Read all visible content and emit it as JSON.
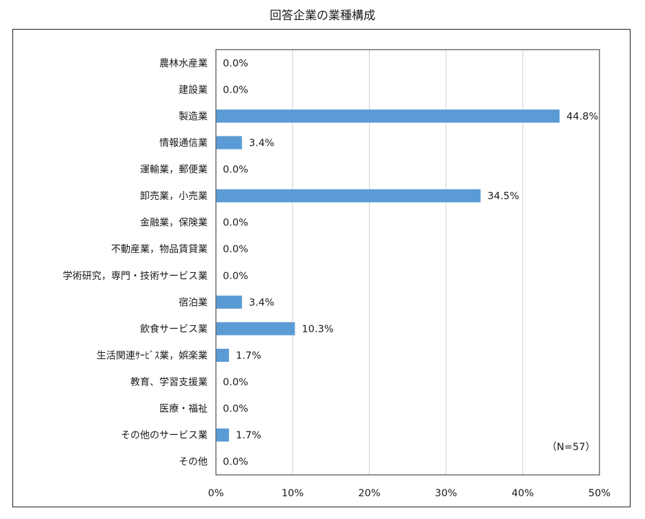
{
  "chart_data": {
    "type": "bar",
    "orientation": "horizontal",
    "title": "回答企業の業種構成",
    "categories": [
      "農林水産業",
      "建設業",
      "製造業",
      "情報通信業",
      "運輸業，郵便業",
      "卸売業，小売業",
      "金融業，保険業",
      "不動産業，物品賃貸業",
      "学術研究，専門・技術サービス業",
      "宿泊業",
      "飲食サービス業",
      "生活関連ｻｰﾋﾞｽ業，娯楽業",
      "教育、学習支援業",
      "医療・福祉",
      "その他のサービス業",
      "その他"
    ],
    "values": [
      0.0,
      0.0,
      44.8,
      3.4,
      0.0,
      34.5,
      0.0,
      0.0,
      0.0,
      3.4,
      10.3,
      1.7,
      0.0,
      0.0,
      1.7,
      0.0
    ],
    "data_labels": [
      "0.0%",
      "0.0%",
      "44.8%",
      "3.4%",
      "0.0%",
      "34.5%",
      "0.0%",
      "0.0%",
      "0.0%",
      "3.4%",
      "10.3%",
      "1.7%",
      "0.0%",
      "0.0%",
      "1.7%",
      "0.0%"
    ],
    "xlim": [
      0,
      50
    ],
    "xticks": [
      0,
      10,
      20,
      30,
      40,
      50
    ],
    "xtick_labels": [
      "0%",
      "10%",
      "20%",
      "30%",
      "40%",
      "50%"
    ],
    "xlabel": "",
    "ylabel": "",
    "grid": true,
    "legend": "none",
    "note": "（N=57）",
    "bar_color": "#5b9bd5"
  }
}
